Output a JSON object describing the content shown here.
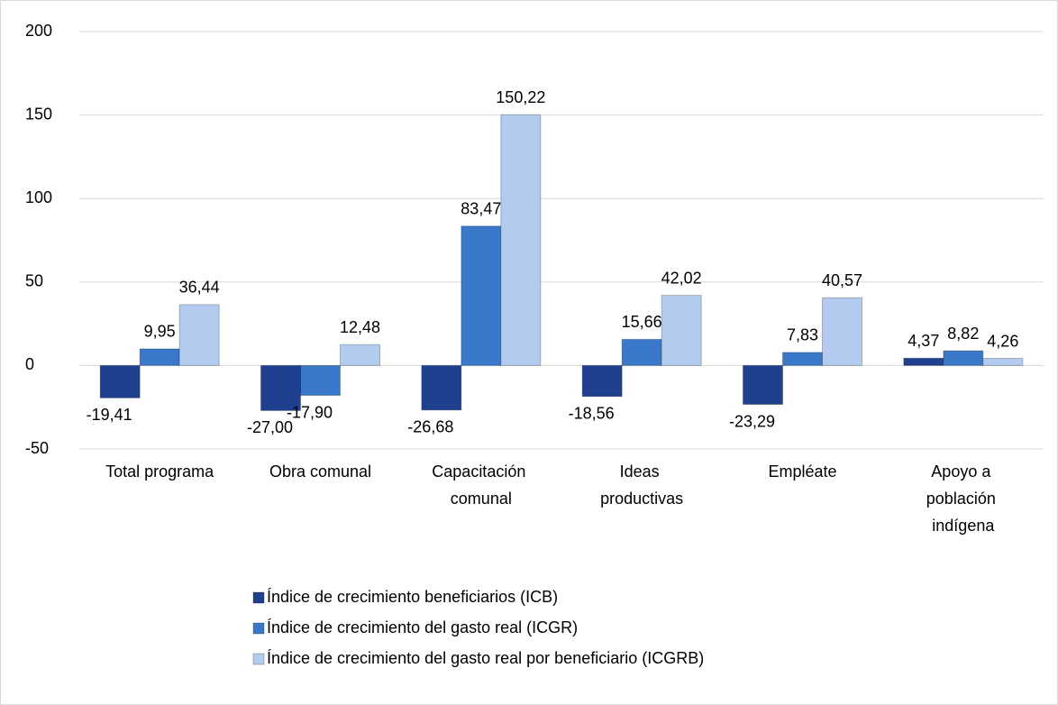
{
  "chart_data": {
    "type": "bar",
    "categories": [
      "Total programa",
      "Obra comunal",
      "Capacitación comunal",
      "Ideas productivas",
      "Empléate",
      "Apoyo a población indígena"
    ],
    "series": [
      {
        "name": "Índice de crecimiento beneficiarios (ICB)",
        "color": "#1f3f8f",
        "values": [
          -19.41,
          -27.0,
          -26.68,
          -18.56,
          -23.29,
          4.37
        ],
        "value_labels": [
          "-19,41",
          "-27,00",
          "-26,68",
          "-18,56",
          "-23,29",
          "4,37"
        ]
      },
      {
        "name": "Índice de crecimiento del gasto real (ICGR)",
        "color": "#3a78c9",
        "values": [
          9.95,
          -17.9,
          83.47,
          15.66,
          7.83,
          8.82
        ],
        "value_labels": [
          "9,95",
          "-17,90",
          "83,47",
          "15,66",
          "7,83",
          "8,82"
        ]
      },
      {
        "name": "Índice de crecimiento del gasto real por beneficiario (ICGRB)",
        "color": "#b3cbee",
        "values": [
          36.44,
          12.48,
          150.22,
          42.02,
          40.57,
          4.26
        ],
        "value_labels": [
          "36,44",
          "12,48",
          "150,22",
          "42,02",
          "40,57",
          "4,26"
        ]
      }
    ],
    "ylim": [
      -50,
      200
    ],
    "yticks": [
      -50,
      0,
      50,
      100,
      150,
      200
    ],
    "grid": true,
    "legend": "bottom"
  }
}
